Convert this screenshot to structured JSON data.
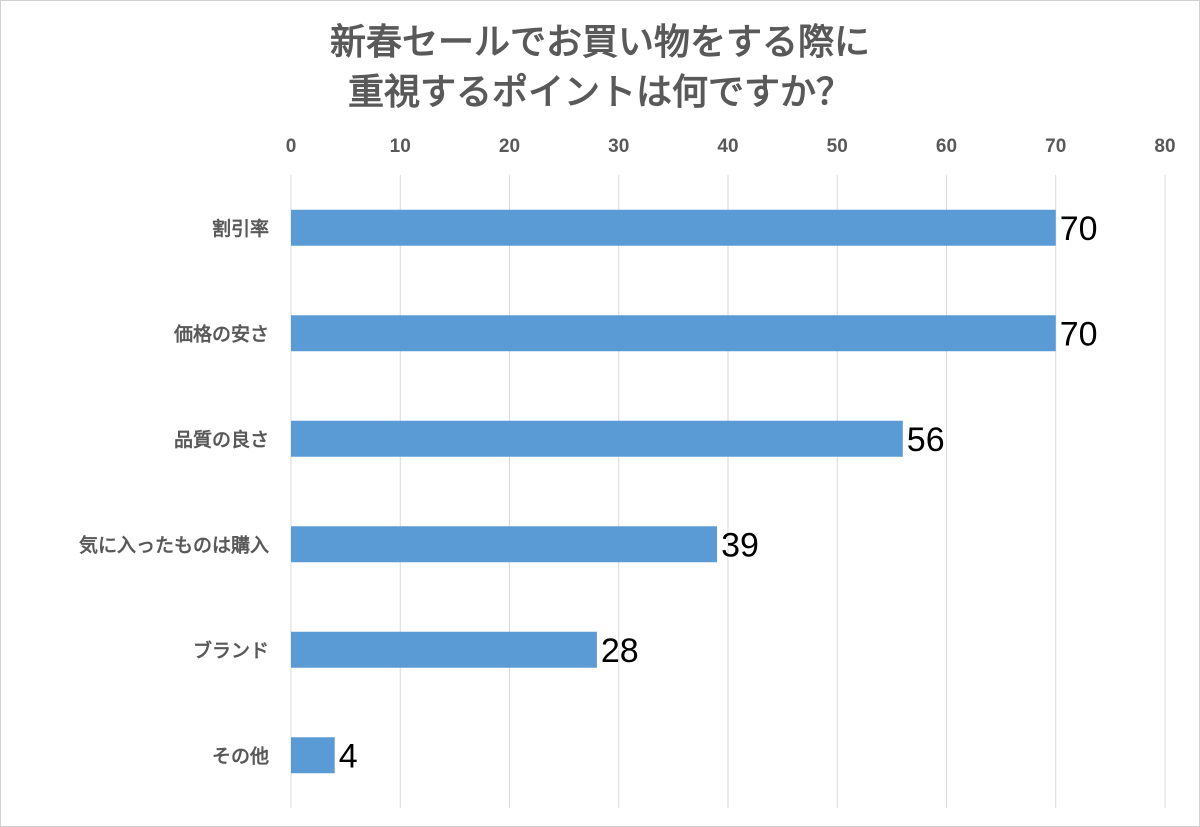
{
  "chart_data": {
    "type": "bar",
    "orientation": "horizontal",
    "title": [
      "新春セールでお買い物をする際に",
      "重視するポイントは何ですか？"
    ],
    "categories": [
      "割引率",
      "価格の安さ",
      "品質の良さ",
      "気に入ったものは購入",
      "ブランド",
      "その他"
    ],
    "values": [
      70,
      70,
      56,
      39,
      28,
      4
    ],
    "xlim": [
      0,
      80
    ],
    "xticks": [
      0,
      10,
      20,
      30,
      40,
      50,
      60,
      70,
      80
    ],
    "xaxis_position": "top",
    "grid": true,
    "bar_color": "#5b9bd5",
    "data_labels": true
  }
}
